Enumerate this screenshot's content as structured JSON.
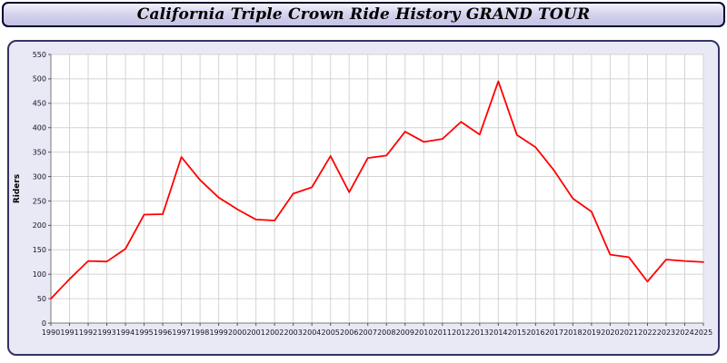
{
  "title": "California Triple Crown Ride History GRAND TOUR",
  "colors": {
    "line": "#ff0000",
    "panel_bg": "#e9e9f6",
    "panel_border": "#333366",
    "title_border": "#000033",
    "grid": "#d4d4d4",
    "plot_bg": "#ffffff"
  },
  "chart_data": {
    "type": "line",
    "title": "California Triple Crown Ride History GRAND TOUR",
    "xlabel": "",
    "ylabel": "Riders",
    "ylim": [
      0,
      550
    ],
    "ytick_step": 50,
    "grid": true,
    "legend_position": "none",
    "x": [
      1990,
      1991,
      1992,
      1993,
      1994,
      1995,
      1996,
      1997,
      1998,
      1999,
      2000,
      2001,
      2002,
      2003,
      2004,
      2005,
      2006,
      2007,
      2008,
      2009,
      2010,
      2011,
      2012,
      2013,
      2014,
      2015,
      2016,
      2017,
      2018,
      2019,
      2020,
      2021,
      2022,
      2023,
      2024,
      2025
    ],
    "series": [
      {
        "name": "Riders",
        "color": "#ff0000",
        "values": [
          50,
          90,
          127,
          126,
          152,
          222,
          223,
          340,
          293,
          257,
          233,
          212,
          210,
          265,
          278,
          342,
          268,
          338,
          343,
          392,
          371,
          377,
          412,
          386,
          495,
          385,
          360,
          312,
          255,
          228,
          140,
          135,
          85,
          130,
          127,
          125
        ]
      }
    ]
  }
}
